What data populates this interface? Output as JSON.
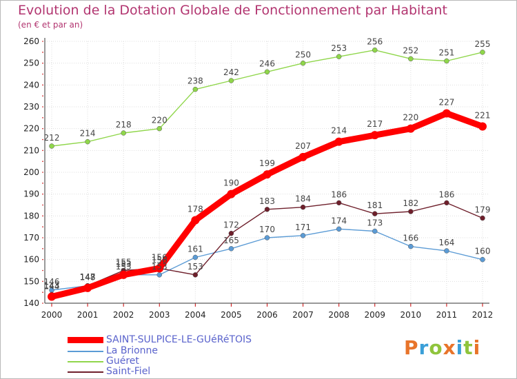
{
  "header": {
    "title": "Evolution de la Dotation Globale de Fonctionnement par Habitant",
    "subtitle": "(en € et par an)"
  },
  "logo": {
    "text": "Proxiti",
    "colors": [
      "#e8742a",
      "#3a9fd8",
      "#8fc43c",
      "#e8742a",
      "#3a9fd8",
      "#8fc43c",
      "#e8742a"
    ]
  },
  "chart_data": {
    "type": "line",
    "x": [
      2000,
      2001,
      2002,
      2003,
      2004,
      2005,
      2006,
      2007,
      2008,
      2009,
      2010,
      2011,
      2012
    ],
    "ylim": [
      140,
      260
    ],
    "yticks": [
      140,
      150,
      160,
      170,
      180,
      190,
      200,
      210,
      220,
      230,
      240,
      250,
      260
    ],
    "grid": true,
    "legend_position": "bottom-left",
    "series": [
      {
        "name": "SAINT-SULPICE-LE-GUéRéTOIS",
        "color": "#ff0000",
        "width": 9,
        "marker": 6,
        "values": [
          143,
          147,
          153,
          156,
          178,
          190,
          199,
          207,
          214,
          217,
          220,
          227,
          221
        ]
      },
      {
        "name": "La Brionne",
        "color": "#5b9bd5",
        "width": 1.4,
        "marker": 3.5,
        "values": [
          146,
          148,
          153,
          153,
          161,
          165,
          170,
          171,
          174,
          173,
          166,
          164,
          160
        ]
      },
      {
        "name": "Guéret",
        "color": "#8fd64a",
        "width": 1.4,
        "marker": 3.5,
        "values": [
          212,
          214,
          218,
          220,
          238,
          242,
          246,
          250,
          253,
          256,
          252,
          251,
          255
        ]
      },
      {
        "name": "Saint-Fiel",
        "color": "#6e1f2b",
        "width": 1.4,
        "marker": 3.5,
        "values": [
          144,
          148,
          155,
          156,
          153,
          172,
          183,
          184,
          186,
          181,
          182,
          186,
          179
        ]
      }
    ]
  }
}
